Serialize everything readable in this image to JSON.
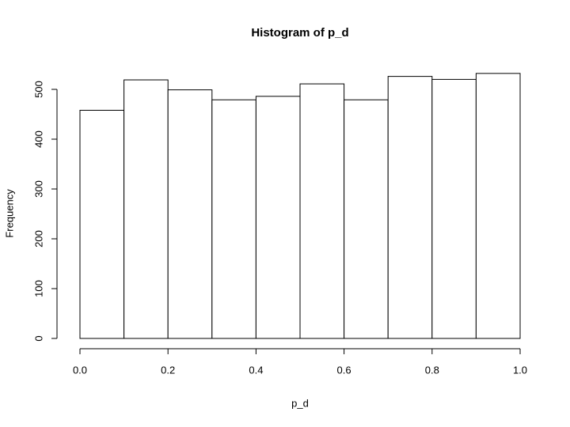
{
  "chart_data": {
    "type": "histogram",
    "title": "Histogram of p_d",
    "x_label": "p_d",
    "y_label": "Frequency",
    "bins": [
      0,
      0.1,
      0.2,
      0.3,
      0.4,
      0.5,
      0.6,
      0.7,
      0.8,
      0.9,
      1.0
    ],
    "counts": [
      458,
      519,
      499,
      479,
      486,
      511,
      479,
      526,
      520,
      532
    ],
    "color": "#ffffff",
    "edge_color": "#000000",
    "xlim": [
      0,
      1
    ],
    "ylim": [
      0,
      500
    ],
    "xticks": [
      {
        "value": 0,
        "label": "0.0"
      },
      0.2,
      0.4,
      0.6,
      0.8,
      {
        "value": 1,
        "label": "1.0"
      }
    ],
    "yticks": [
      0,
      100,
      200,
      300,
      400,
      500
    ]
  }
}
